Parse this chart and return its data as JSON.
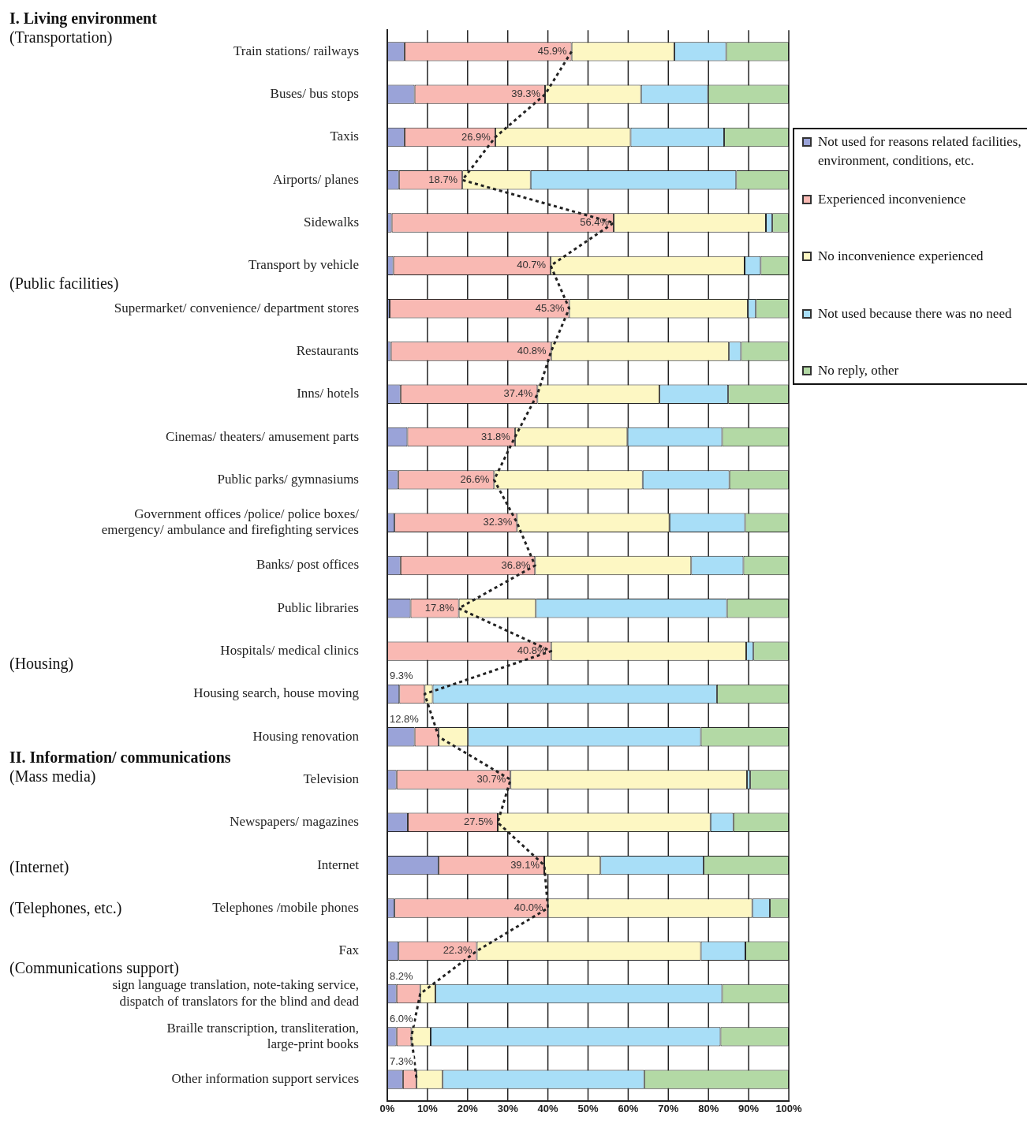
{
  "chart_data": {
    "type": "bar",
    "orientation": "horizontal",
    "stacked": true,
    "categories": [
      "Train stations/ railways",
      "Buses/ bus stops",
      "Taxis",
      "Airports/ planes",
      "Sidewalks",
      "Transport by vehicle",
      "Supermarket/ convenience/ department stores",
      "Restaurants",
      "Inns/ hotels",
      "Cinemas/ theaters/ amusement parts",
      "Public parks/ gymnasiums",
      "Government offices /police/ police boxes/ emergency/ ambulance and firefighting services",
      "Banks/ post offices",
      "Public libraries",
      "Hospitals/ medical clinics",
      "Housing search, house moving",
      "Housing renovation",
      "Television",
      "Newspapers/ magazines",
      "Internet",
      "Telephones /mobile phones",
      "Fax",
      "sign language translation, note-taking service, dispatch of translators for the blind and dead",
      "Braille transcription, transliteration, large-print books",
      "Other information support services"
    ],
    "series": [
      {
        "name": "Not used for reasons related facilities, environment, conditions, etc.",
        "color": "#9aa3d8",
        "values": [
          4.3,
          6.8,
          4.3,
          2.9,
          1.1,
          1.5,
          0.6,
          0.9,
          3.3,
          5.0,
          2.7,
          1.8,
          3.3,
          5.8,
          0,
          3.0,
          6.8,
          2.3,
          5.1,
          12.8,
          1.8,
          2.8,
          2.3,
          2.3,
          3.9
        ]
      },
      {
        "name": "Experienced inconvenience",
        "color": "#f9b9b3",
        "values": [
          41.6,
          32.5,
          22.6,
          15.8,
          55.3,
          39.2,
          44.7,
          39.9,
          34.1,
          26.8,
          23.9,
          30.5,
          33.5,
          12.0,
          40.8,
          6.3,
          6.0,
          28.4,
          22.4,
          26.3,
          38.2,
          19.5,
          5.9,
          3.7,
          3.4
        ]
      },
      {
        "name": "No inconvenience experienced",
        "color": "#fdf7c3",
        "values": [
          25.6,
          23.9,
          33.7,
          17.0,
          37.9,
          48.3,
          44.5,
          44.3,
          30.4,
          28.0,
          37.0,
          38.0,
          38.9,
          19.2,
          48.6,
          2.0,
          7.3,
          58.9,
          53.0,
          14.0,
          50.9,
          55.8,
          3.8,
          4.8,
          6.5
        ]
      },
      {
        "name": "Not used because there was no need",
        "color": "#a8def7",
        "values": [
          12.9,
          16.7,
          23.3,
          51.2,
          1.6,
          4.0,
          2.0,
          3.0,
          17.1,
          23.6,
          21.6,
          18.8,
          13.0,
          47.6,
          1.8,
          70.8,
          58.0,
          0.8,
          5.7,
          25.7,
          4.4,
          11.1,
          71.4,
          72.2,
          50.2
        ]
      },
      {
        "name": "No reply, other",
        "color": "#b3d9a5",
        "values": [
          15.6,
          20.1,
          16.1,
          13.1,
          4.1,
          7.0,
          8.2,
          11.9,
          15.1,
          16.6,
          14.8,
          10.9,
          11.3,
          15.4,
          8.8,
          17.9,
          21.9,
          9.6,
          13.8,
          21.2,
          4.7,
          10.8,
          16.6,
          17.0,
          36.0
        ]
      },
      {
        "type": "line",
        "color": "#222222",
        "line_style": "dotted",
        "marker": "none",
        "values": [
          45.9,
          39.3,
          26.9,
          18.7,
          56.4,
          40.7,
          45.3,
          40.8,
          37.4,
          31.8,
          26.6,
          32.3,
          36.8,
          17.8,
          40.8,
          9.3,
          12.8,
          30.7,
          27.5,
          39.1,
          40.0,
          22.3,
          8.2,
          6.0,
          7.3
        ],
        "value_labels": [
          "45.9%",
          "39.3%",
          "26.9%",
          "18.7%",
          "56.4%",
          "40.7%",
          "45.3%",
          "40.8%",
          "37.4%",
          "31.8%",
          "26.6%",
          "32.3%",
          "36.8%",
          "17.8%",
          "40.8%",
          "9.3%",
          "12.8%",
          "30.7%",
          "27.5%",
          "39.1%",
          "40.0%",
          "22.3%",
          "8.2%",
          "6.0%",
          "7.3%"
        ]
      }
    ],
    "xlim": [
      0,
      100
    ],
    "xticks": [
      {
        "value": 0,
        "label": "0%"
      },
      {
        "value": 10,
        "label": "10%"
      },
      {
        "value": 20,
        "label": "20%"
      },
      {
        "value": 30,
        "label": "30%"
      },
      {
        "value": 40,
        "label": "40%"
      },
      {
        "value": 50,
        "label": "50%"
      },
      {
        "value": 60,
        "label": "60%"
      },
      {
        "value": 70,
        "label": "70%"
      },
      {
        "value": 80,
        "label": "80%"
      },
      {
        "value": 90,
        "label": "90%"
      },
      {
        "value": 100,
        "label": "100%"
      }
    ],
    "grid": "x",
    "legend": "right",
    "annotations": [
      "I. Living environment",
      "(Transportation)",
      "(Public facilities)",
      "(Housing)",
      "II. Information/ communications",
      "(Mass media)",
      "(Internet)",
      "(Telephones, etc.)",
      "(Communications support)"
    ]
  }
}
